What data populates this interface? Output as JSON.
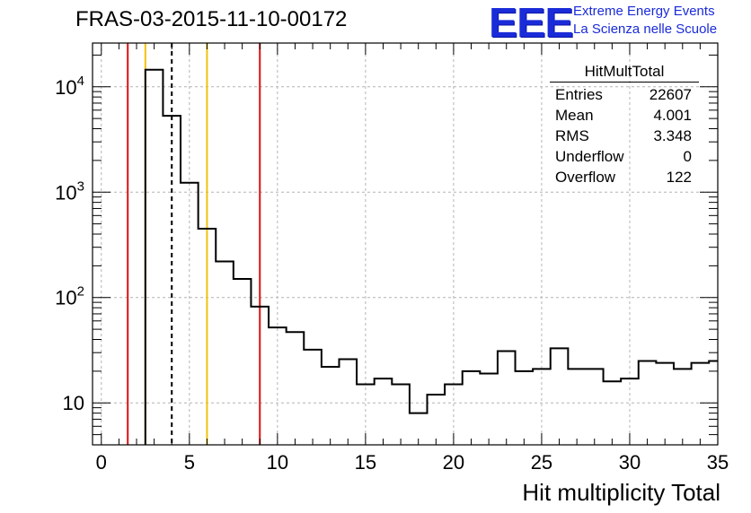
{
  "chart_data": {
    "type": "histogram",
    "title": "FRAS-03-2015-11-10-00172",
    "xlabel": "Hit multiplicity Total",
    "ylabel": "",
    "xlim": [
      -0.5,
      35.0
    ],
    "ylim": [
      4,
      26000
    ],
    "log_y": true,
    "grid": true,
    "x_ticks": [
      "0",
      "5",
      "10",
      "15",
      "20",
      "25",
      "30",
      "35"
    ],
    "y_ticks": [
      "10",
      "10^2",
      "10^3",
      "10^4"
    ],
    "bin_edges": [
      2.5,
      3.5,
      4.5,
      5.5,
      6.5,
      7.5,
      8.5,
      9.5,
      10.5,
      11.5,
      12.5,
      13.5,
      14.5,
      15.5,
      16.5,
      17.5,
      18.5,
      19.5,
      20.5,
      21.5,
      22.5,
      23.5,
      24.5,
      25.5,
      26.5,
      27.5,
      28.5,
      29.5,
      30.5,
      31.5,
      32.5,
      33.5,
      34.5,
      35.0
    ],
    "bin_values": [
      14500,
      5300,
      1230,
      450,
      220,
      150,
      82,
      52,
      47,
      32,
      22,
      26,
      15,
      17,
      15,
      8,
      12,
      15,
      20,
      19,
      31,
      20,
      21,
      33,
      21,
      21,
      16,
      17,
      25,
      24,
      21,
      24,
      25
    ],
    "vertical_lines": [
      {
        "x": 1.5,
        "color": "#dd1111",
        "style": "solid"
      },
      {
        "x": 2.5,
        "color": "#f2c010",
        "style": "solid"
      },
      {
        "x": 4.0,
        "color": "#000000",
        "style": "dashed"
      },
      {
        "x": 6.0,
        "color": "#f2c010",
        "style": "solid"
      },
      {
        "x": 9.0,
        "color": "#dd1111",
        "style": "solid"
      }
    ],
    "stats_box": {
      "title": "HitMultTotal",
      "entries": [
        {
          "label": "Entries",
          "value": "22607"
        },
        {
          "label": "Mean",
          "value": "4.001"
        },
        {
          "label": "RMS",
          "value": "3.348"
        },
        {
          "label": "Underflow",
          "value": "0"
        },
        {
          "label": "Overflow",
          "value": "122"
        }
      ]
    }
  },
  "logo": {
    "mark": "EEE",
    "line1": "Extreme Energy Events",
    "line2": "La Scienza nelle Scuole"
  },
  "colors": {
    "logo": "#1a2bd8",
    "histogram": "#000000",
    "grid": "#b4b4b4"
  }
}
